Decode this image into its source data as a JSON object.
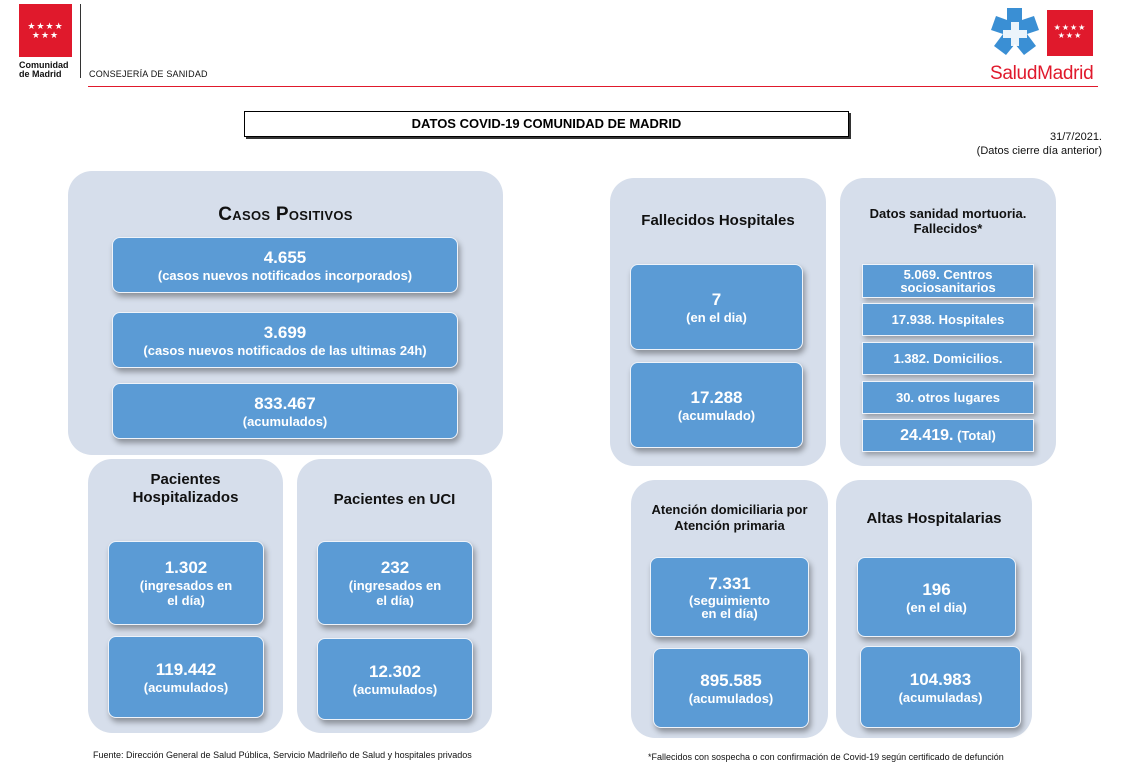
{
  "header": {
    "cam_name_line1": "Comunidad",
    "cam_name_line2": "de Madrid",
    "consejeria": "CONSEJERÍA DE SANIDAD",
    "salud_madrid": "SaludMadrid",
    "brand_red": "#e0192c"
  },
  "title": "DATOS COVID-19 COMUNIDAD DE MADRID",
  "date": "31/7/2021.",
  "date_note": "(Datos cierre día anterior)",
  "casos": {
    "title": "Casos Positivos",
    "items": [
      {
        "value": "4.655",
        "label": "(casos nuevos notificados incorporados)"
      },
      {
        "value": "3.699",
        "label": "(casos nuevos notificados de las ultimas 24h)"
      },
      {
        "value": "833.467",
        "label": "(acumulados)"
      }
    ]
  },
  "hospitalizados": {
    "title_line1": "Pacientes",
    "title_line2": "Hospitalizados",
    "daily_value": "1.302",
    "daily_label_line1": "(ingresados en",
    "daily_label_line2": "el día)",
    "total_value": "119.442",
    "total_label": "(acumulados)"
  },
  "uci": {
    "title": "Pacientes en UCI",
    "daily_value": "232",
    "daily_label_line1": "(ingresados en",
    "daily_label_line2": "el día)",
    "total_value": "12.302",
    "total_label": "(acumulados)"
  },
  "fallecidos_hosp": {
    "title": "Fallecidos Hospitales",
    "daily_value": "7",
    "daily_label": "(en el dia)",
    "total_value": "17.288",
    "total_label": "(acumulado)"
  },
  "mortuoria": {
    "title_line1": "Datos sanidad mortuoria.",
    "title_line2": "Fallecidos*",
    "centros_line1": "5.069. Centros",
    "centros_line2": "sociosanitarios",
    "hospitales": "17.938. Hospitales",
    "domicilios": "1.382. Domicilios.",
    "otros": "30. otros lugares",
    "total_value": "24.419.",
    "total_label": "(Total)"
  },
  "domiciliaria": {
    "title_line1": "Atención domiciliaria por",
    "title_line2": "Atención primaria",
    "daily_value": "7.331",
    "daily_label_line1": "(seguimiento",
    "daily_label_line2": "en el día)",
    "total_value": "895.585",
    "total_label": "(acumulados)"
  },
  "altas": {
    "title": "Altas Hospitalarias",
    "daily_value": "196",
    "daily_label": "(en el dia)",
    "total_value": "104.983",
    "total_label": "(acumuladas)"
  },
  "footer": {
    "fuente": "Fuente: Dirección General de Salud Pública, Servicio Madrileño de Salud y hospitales privados",
    "nota": "*Fallecidos con sospecha o con confirmación de Covid-19 según certificado de defunción"
  }
}
